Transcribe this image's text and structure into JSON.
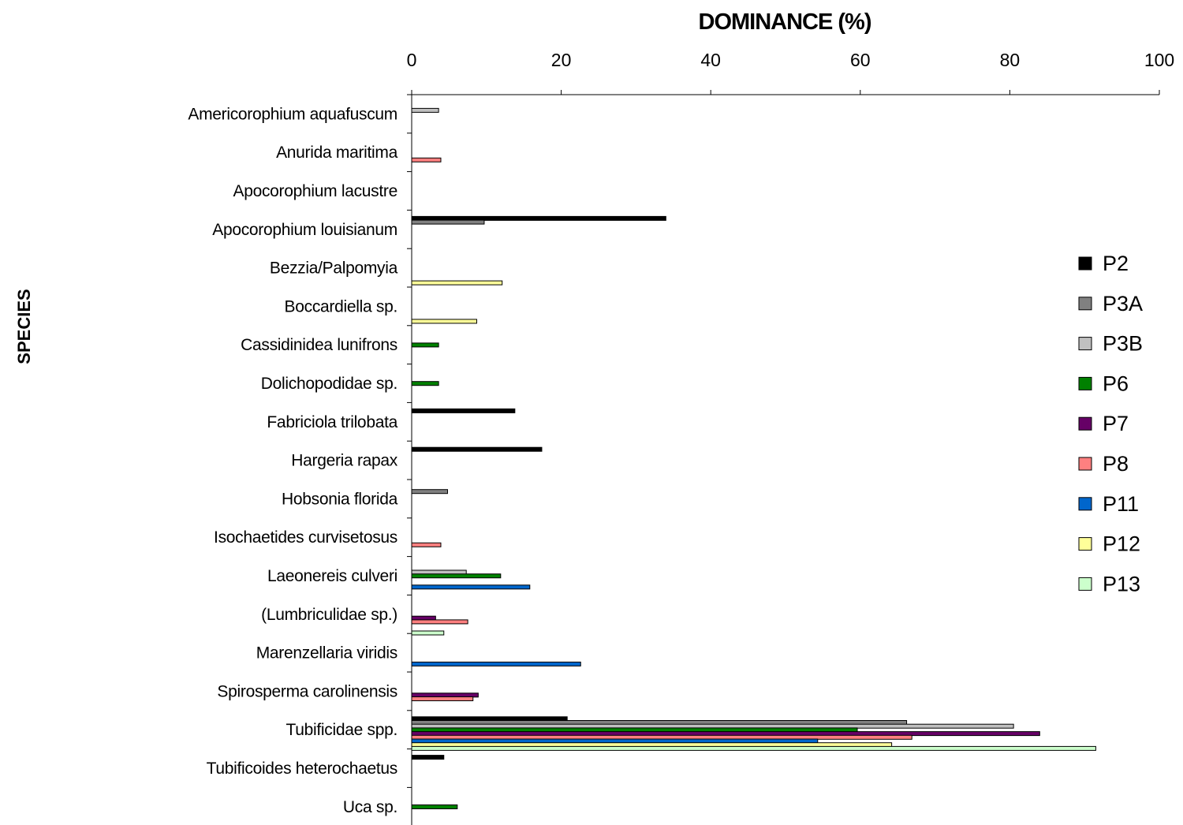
{
  "chart_data": {
    "type": "bar",
    "orientation": "horizontal",
    "title": "DOMINANCE (%)",
    "xlabel": "DOMINANCE (%)",
    "ylabel": "SPECIES",
    "xlim": [
      0,
      100
    ],
    "xticks": [
      "0",
      "20",
      "40",
      "60",
      "80",
      "100"
    ],
    "grid": false,
    "legend_position": "right",
    "categories": [
      "Americorophium aquafuscum",
      "Anurida maritima",
      "Apocorophium lacustre",
      "Apocorophium louisianum",
      "Bezzia/Palpomyia",
      "Boccardiella sp.",
      "Cassidinidea lunifrons",
      "Dolichopodidae sp.",
      "Fabriciola trilobata",
      "Hargeria rapax",
      "Hobsonia florida",
      "Isochaetides curvisetosus",
      "Laeonereis culveri",
      "(Lumbriculidae sp.)",
      "Marenzellaria viridis",
      "Spirosperma carolinensis",
      "Tubificidae spp.",
      "Tubificoides heterochaetus",
      "Uca sp."
    ],
    "series": [
      {
        "name": "P2",
        "color": "#000000",
        "values": [
          0,
          0,
          0,
          34,
          0,
          0,
          0,
          0,
          13.8,
          17.4,
          0,
          0,
          0,
          0,
          0,
          0,
          20.8,
          4.3,
          0
        ]
      },
      {
        "name": "P3A",
        "color": "#808080",
        "values": [
          0,
          0,
          0,
          9.7,
          0,
          0,
          0,
          0,
          0,
          0,
          4.8,
          0,
          0,
          0,
          0,
          0,
          66.2,
          0,
          0
        ]
      },
      {
        "name": "P3B",
        "color": "#c0c0c0",
        "values": [
          3.6,
          0,
          0,
          0,
          0,
          0,
          0,
          0,
          0,
          0,
          0,
          0,
          7.3,
          0,
          0,
          0,
          80.5,
          0,
          0
        ]
      },
      {
        "name": "P6",
        "color": "#008000",
        "values": [
          0,
          0,
          0,
          0,
          0,
          0,
          3.6,
          3.6,
          0,
          0,
          0,
          0,
          11.9,
          0,
          0,
          0,
          59.6,
          0,
          6.1
        ]
      },
      {
        "name": "P7",
        "color": "#660066",
        "values": [
          0,
          0,
          0,
          0,
          0,
          0,
          0,
          0,
          0,
          0,
          0,
          0,
          0,
          3.2,
          0,
          8.9,
          84,
          0,
          0
        ]
      },
      {
        "name": "P8",
        "color": "#ff8080",
        "values": [
          0,
          3.9,
          0,
          0,
          0,
          0,
          0,
          0,
          0,
          0,
          0,
          3.9,
          0,
          7.5,
          0,
          8.2,
          66.9,
          0,
          0
        ]
      },
      {
        "name": "P11",
        "color": "#0066cc",
        "values": [
          0,
          0,
          0,
          0,
          0,
          0,
          0,
          0,
          0,
          0,
          0,
          0,
          15.8,
          0,
          22.6,
          0,
          54.3,
          0,
          0
        ]
      },
      {
        "name": "P12",
        "color": "#ffff99",
        "values": [
          0,
          0,
          0,
          0,
          12.1,
          8.7,
          0,
          0,
          0,
          0,
          0,
          0,
          0,
          0,
          0,
          0,
          64.2,
          0,
          0
        ]
      },
      {
        "name": "P13",
        "color": "#ccffcc",
        "values": [
          0,
          0,
          0,
          0,
          0,
          0,
          0,
          0,
          0,
          0,
          0,
          0,
          0,
          4.3,
          0,
          0,
          91.5,
          0,
          0
        ]
      }
    ]
  }
}
